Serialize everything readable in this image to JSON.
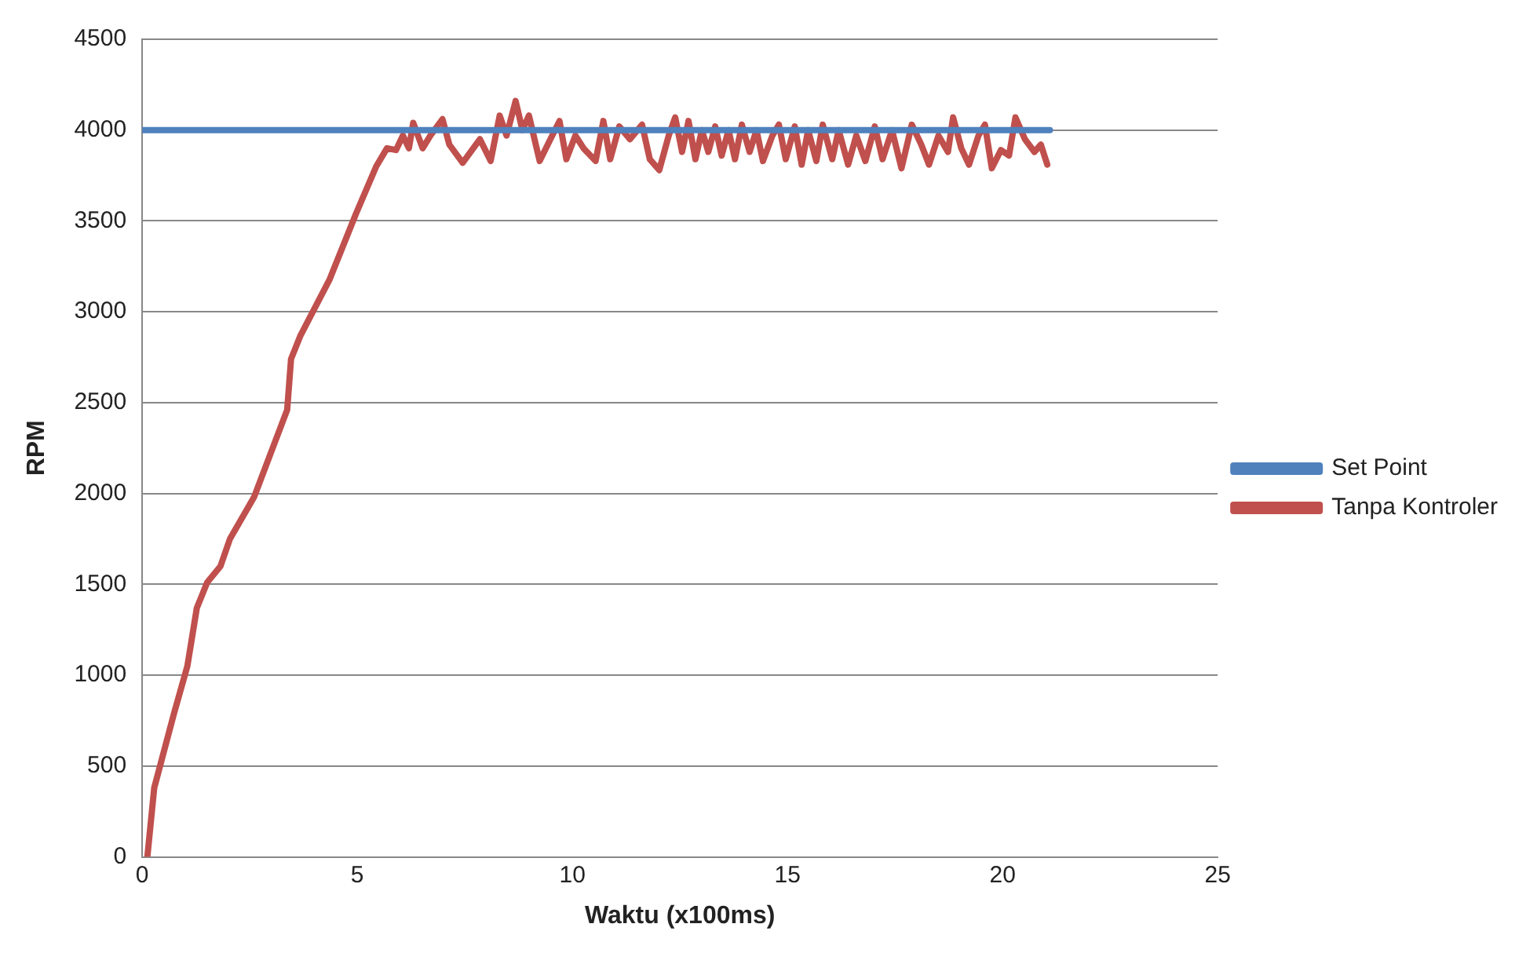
{
  "chart_data": {
    "type": "line",
    "xlabel": "Waktu (x100ms)",
    "ylabel": "RPM",
    "xlim": [
      0,
      25
    ],
    "xticks": [
      0,
      5,
      10,
      15,
      20,
      25
    ],
    "ylim": [
      0,
      4500
    ],
    "yticks": [
      0,
      500,
      1000,
      1500,
      2000,
      2500,
      3000,
      3500,
      4000,
      4500
    ],
    "grid": "y",
    "legend": "right",
    "marker": "none",
    "line_style": "solid",
    "series": [
      {
        "name": "Set Point",
        "color": "#4f81bd",
        "x": [
          0,
          21.1
        ],
        "values": [
          4000,
          4000
        ]
      },
      {
        "name": "Tanpa Kontroler",
        "color": "#c0504d",
        "x": [
          0.12,
          0.28,
          0.74,
          1.05,
          1.27,
          1.51,
          1.82,
          2.04,
          2.6,
          3.37,
          3.46,
          3.68,
          4.36,
          4.97,
          5.44,
          5.69,
          5.9,
          6.06,
          6.2,
          6.3,
          6.52,
          6.7,
          6.98,
          7.14,
          7.45,
          7.85,
          8.1,
          8.31,
          8.47,
          8.68,
          8.84,
          8.99,
          9.24,
          9.49,
          9.7,
          9.86,
          10.07,
          10.26,
          10.54,
          10.72,
          10.88,
          11.09,
          11.34,
          11.62,
          11.8,
          12.02,
          12.24,
          12.39,
          12.55,
          12.7,
          12.86,
          13.01,
          13.16,
          13.32,
          13.47,
          13.63,
          13.78,
          13.94,
          14.12,
          14.28,
          14.43,
          14.65,
          14.8,
          14.96,
          15.17,
          15.33,
          15.48,
          15.67,
          15.82,
          16.04,
          16.19,
          16.41,
          16.6,
          16.81,
          17.03,
          17.21,
          17.43,
          17.65,
          17.89,
          18.11,
          18.29,
          18.51,
          18.73,
          18.85,
          19.04,
          19.22,
          19.44,
          19.59,
          19.75,
          19.96,
          20.15,
          20.3,
          20.52,
          20.74,
          20.89,
          21.04
        ],
        "values": [
          0,
          380,
          790,
          1050,
          1370,
          1510,
          1600,
          1750,
          1980,
          2460,
          2740,
          2870,
          3180,
          3540,
          3800,
          3900,
          3890,
          3970,
          3900,
          4040,
          3900,
          3970,
          4060,
          3920,
          3820,
          3950,
          3830,
          4080,
          3970,
          4160,
          4000,
          4080,
          3830,
          3950,
          4050,
          3840,
          3970,
          3900,
          3830,
          4050,
          3840,
          4020,
          3950,
          4030,
          3840,
          3780,
          3970,
          4070,
          3880,
          4050,
          3840,
          4000,
          3880,
          4020,
          3860,
          4000,
          3840,
          4030,
          3880,
          4000,
          3830,
          3970,
          4030,
          3840,
          4020,
          3810,
          4000,
          3830,
          4030,
          3840,
          4000,
          3810,
          3970,
          3830,
          4020,
          3840,
          4000,
          3790,
          4030,
          3920,
          3810,
          3970,
          3880,
          4070,
          3900,
          3810,
          3970,
          4030,
          3790,
          3890,
          3860,
          4070,
          3950,
          3880,
          3920,
          3810
        ]
      }
    ]
  }
}
